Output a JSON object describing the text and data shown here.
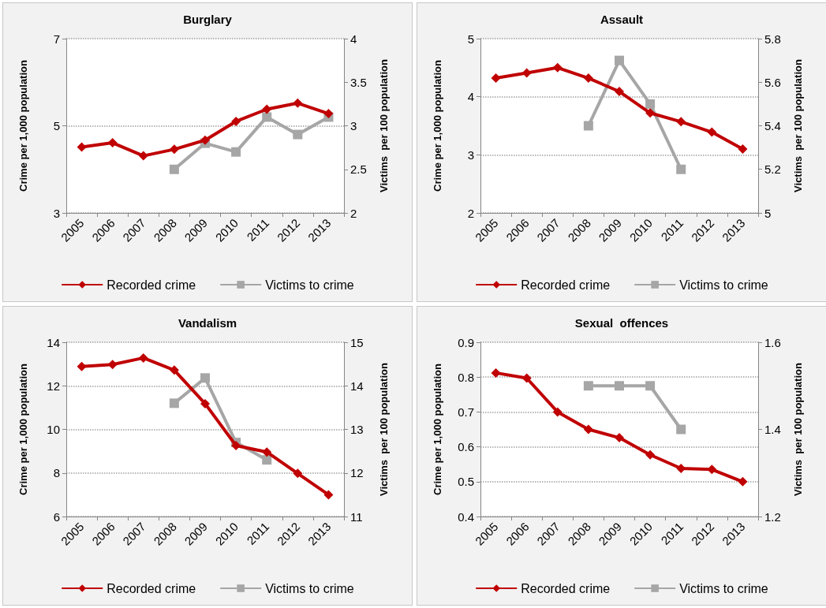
{
  "chart_data": [
    {
      "type": "line",
      "title": "Burglary",
      "ylabel": "Crime per 1,000 population",
      "y2label": "Victims  per 100 population",
      "categories": [
        "2005",
        "2006",
        "2007",
        "2008",
        "2009",
        "2010",
        "2011",
        "2012",
        "2013"
      ],
      "series": [
        {
          "name": "Recorded crime",
          "color": "#c00000",
          "marker": "diamond",
          "values": [
            4.51,
            4.61,
            4.31,
            4.46,
            4.67,
            5.1,
            5.38,
            5.52,
            5.28
          ]
        },
        {
          "name": "Victims to crime",
          "color": "#a6a6a6",
          "marker": "square",
          "axis": "y2",
          "values": [
            null,
            null,
            null,
            2.5,
            2.8,
            2.7,
            3.1,
            2.9,
            3.1
          ]
        }
      ],
      "ylim": [
        3,
        7
      ],
      "yticks": [
        3,
        5,
        7
      ],
      "y2lim": [
        2,
        4
      ],
      "y2ticks": [
        2,
        2.5,
        3,
        3.5,
        4
      ],
      "grid": "y",
      "legend": "bottom"
    },
    {
      "type": "line",
      "title": "Assault",
      "ylabel": "Crime per 1,000 population",
      "y2label": "Victims  per 100 population",
      "categories": [
        "2005",
        "2006",
        "2007",
        "2008",
        "2009",
        "2010",
        "2011",
        "2012",
        "2013"
      ],
      "series": [
        {
          "name": "Recorded crime",
          "color": "#c00000",
          "marker": "diamond",
          "values": [
            4.32,
            4.41,
            4.5,
            4.32,
            4.09,
            3.72,
            3.57,
            3.39,
            3.1
          ]
        },
        {
          "name": "Victims to crime",
          "color": "#a6a6a6",
          "marker": "square",
          "axis": "y2",
          "values": [
            null,
            null,
            null,
            5.4,
            5.7,
            5.5,
            5.2,
            null,
            null
          ]
        }
      ],
      "ylim": [
        2,
        5
      ],
      "yticks": [
        2,
        3,
        4,
        5
      ],
      "y2lim": [
        5,
        5.8
      ],
      "y2ticks": [
        5,
        5.2,
        5.4,
        5.6,
        5.8
      ],
      "grid": "y",
      "legend": "bottom"
    },
    {
      "type": "line",
      "title": "Vandalism",
      "ylabel": "Crime per 1,000 population",
      "y2label": "Victims  per 100 population",
      "categories": [
        "2005",
        "2006",
        "2007",
        "2008",
        "2009",
        "2010",
        "2011",
        "2012",
        "2013"
      ],
      "series": [
        {
          "name": "Recorded crime",
          "color": "#c00000",
          "marker": "diamond",
          "values": [
            12.89,
            12.98,
            13.28,
            12.72,
            11.18,
            9.26,
            8.96,
            7.98,
            7.0
          ]
        },
        {
          "name": "Victims to crime",
          "color": "#a6a6a6",
          "marker": "square",
          "axis": "y2",
          "values": [
            null,
            null,
            null,
            13.6,
            14.18,
            12.7,
            12.3,
            null,
            null
          ]
        }
      ],
      "ylim": [
        6,
        14
      ],
      "yticks": [
        6,
        8,
        10,
        12,
        14
      ],
      "y2lim": [
        11,
        15
      ],
      "y2ticks": [
        11,
        12,
        13,
        14,
        15
      ],
      "grid": "y",
      "legend": "bottom"
    },
    {
      "type": "line",
      "title": "Sexual  offences",
      "ylabel": "Crime per 1,000 population",
      "y2label": "Victims  per 100 population",
      "categories": [
        "2005",
        "2006",
        "2007",
        "2008",
        "2009",
        "2010",
        "2011",
        "2012",
        "2013"
      ],
      "series": [
        {
          "name": "Recorded crime",
          "color": "#c00000",
          "marker": "diamond",
          "values": [
            0.812,
            0.797,
            0.7,
            0.65,
            0.626,
            0.577,
            0.538,
            0.535,
            0.5
          ]
        },
        {
          "name": "Victims to crime",
          "color": "#a6a6a6",
          "marker": "square",
          "axis": "y2",
          "values": [
            null,
            null,
            null,
            1.5,
            1.5,
            1.5,
            1.4,
            null,
            null
          ]
        }
      ],
      "ylim": [
        0.4,
        0.9
      ],
      "yticks": [
        0.4,
        0.5,
        0.6,
        0.7,
        0.8,
        0.9
      ],
      "y2lim": [
        1.2,
        1.6
      ],
      "y2ticks": [
        1.2,
        1.4,
        1.6
      ],
      "grid": "y",
      "legend": "bottom"
    }
  ]
}
